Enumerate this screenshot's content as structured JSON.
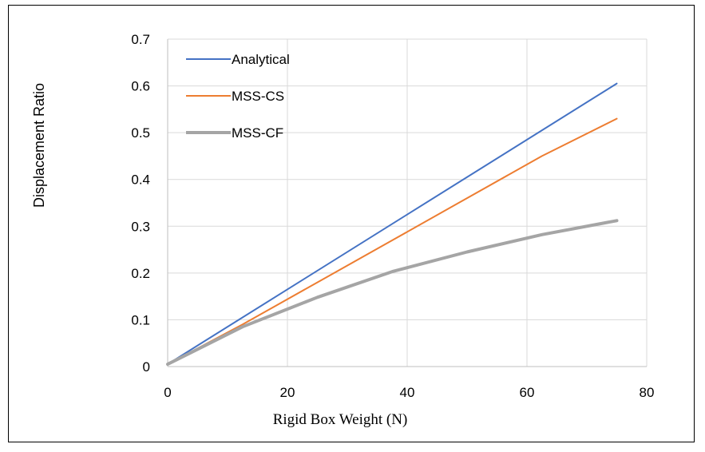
{
  "chart_data": {
    "type": "line",
    "xlabel": "Rigid Box Weight (N)",
    "ylabel": "Displacement Ratio",
    "xlim": [
      0,
      80
    ],
    "ylim": [
      0,
      0.7
    ],
    "x_ticks": [
      "0",
      "20",
      "40",
      "60",
      "80"
    ],
    "y_ticks": [
      "0",
      "0.1",
      "0.2",
      "0.3",
      "0.4",
      "0.5",
      "0.6",
      "0.7"
    ],
    "grid": true,
    "legend_position": "top-left",
    "series": [
      {
        "name": "Analytical",
        "color": "#4472C4",
        "x": [
          0,
          75
        ],
        "y": [
          0.005,
          0.605
        ]
      },
      {
        "name": "MSS-CS",
        "color": "#ED7D31",
        "x": [
          0,
          12.5,
          25,
          37.5,
          50,
          62.5,
          75
        ],
        "y": [
          0.005,
          0.09,
          0.18,
          0.27,
          0.36,
          0.45,
          0.53
        ]
      },
      {
        "name": "MSS-CF",
        "color": "#A5A5A5",
        "x": [
          0,
          12.5,
          25,
          37.5,
          50,
          62.5,
          75
        ],
        "y": [
          0.005,
          0.085,
          0.148,
          0.203,
          0.245,
          0.282,
          0.312
        ]
      }
    ]
  }
}
